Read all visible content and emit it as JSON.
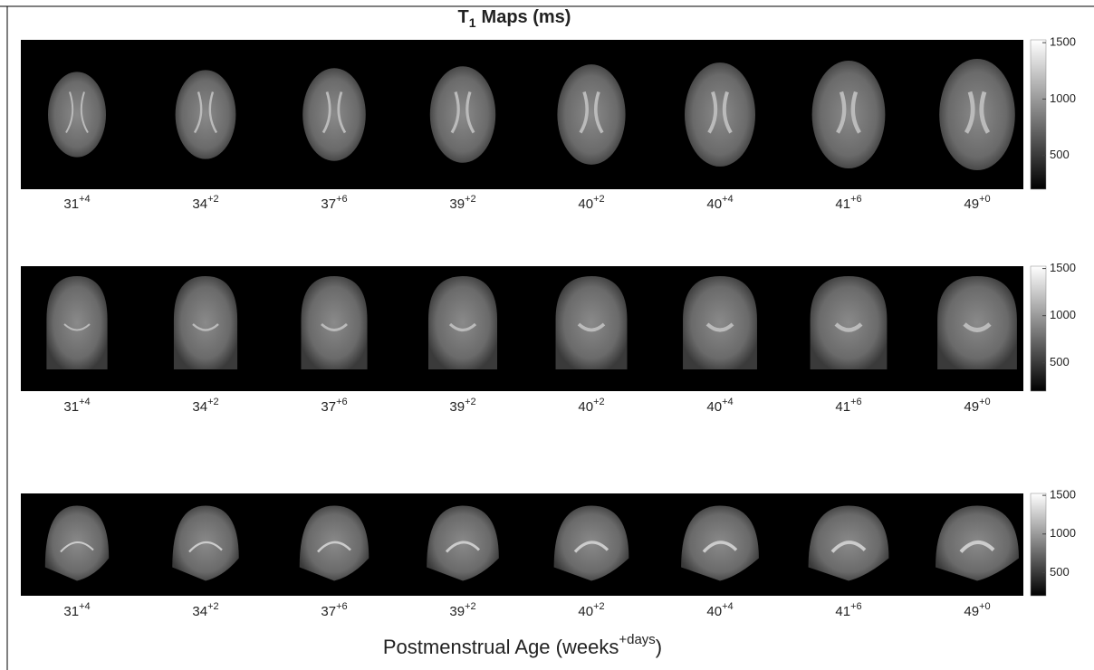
{
  "title": {
    "main": "T",
    "subscript": "1",
    "suffix": "Maps (ms)"
  },
  "ages": [
    {
      "weeks": "31",
      "days": "+4"
    },
    {
      "weeks": "34",
      "days": "+2"
    },
    {
      "weeks": "37",
      "days": "+6"
    },
    {
      "weeks": "39",
      "days": "+2"
    },
    {
      "weeks": "40",
      "days": "+2"
    },
    {
      "weeks": "40",
      "days": "+4"
    },
    {
      "weeks": "41",
      "days": "+6"
    },
    {
      "weeks": "49",
      "days": "+0"
    }
  ],
  "colorbar": {
    "lim": [
      200,
      1525
    ],
    "ticks": [
      500,
      1000,
      1500
    ]
  },
  "xlabel": {
    "text": "Postmenstrual Age (weeks",
    "superscript": "+days",
    "close": ")"
  }
}
